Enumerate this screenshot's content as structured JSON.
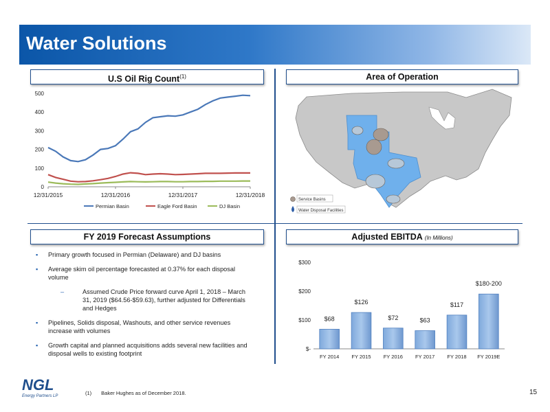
{
  "slide": {
    "title": "Water Solutions",
    "page_number": "15",
    "footnote_marker": "(1)",
    "footnote_text": "Baker Hughes as of  December  2018.",
    "logo_text": "Energy Partners LP"
  },
  "sections": {
    "rig_count": {
      "title": "U.S Oil Rig Count",
      "superscript": "(1)"
    },
    "area": {
      "title": "Area of Operation"
    },
    "forecast": {
      "title": "FY 2019 Forecast Assumptions"
    },
    "ebitda": {
      "title": "Adjusted EBITDA",
      "subtitle": "(In Millions)"
    }
  },
  "map": {
    "legend": [
      "Service Basins",
      "Water Disposal Facilities"
    ],
    "colors": {
      "land": "#c8c8c8",
      "highlight": "#6fb0ec",
      "basin": "#a89a90"
    }
  },
  "forecast_bullets": [
    {
      "text": "Primary growth focused in Permian (Delaware) and DJ basins"
    },
    {
      "text": "Average skim oil percentage forecasted at 0.37% for each disposal volume"
    },
    {
      "text": "Assumed Crude Price forward curve April 1, 2018 – March 31, 2019 ($64.56-$59.63), further adjusted for Differentials and Hedges",
      "sub": true
    },
    {
      "text": "Pipelines, Solids disposal, Washouts, and other service revenues increase with volumes"
    },
    {
      "text": "Growth capital and planned acquisitions adds several new facilities and disposal wells to existing footprint"
    }
  ],
  "chart_data": [
    {
      "type": "line",
      "x_ticks": [
        "12/31/2015",
        "12/31/2016",
        "12/31/2017",
        "12/31/2018"
      ],
      "y_ticks": [
        "0",
        "100",
        "200",
        "300",
        "400",
        "500"
      ],
      "ylim": [
        0,
        500
      ],
      "legend_position": "bottom",
      "series": [
        {
          "name": "Permian Basin",
          "color": "#4a78b8",
          "values": [
            210,
            190,
            160,
            140,
            135,
            145,
            170,
            200,
            205,
            220,
            255,
            295,
            310,
            345,
            370,
            375,
            380,
            378,
            385,
            400,
            415,
            440,
            460,
            475,
            480,
            485,
            490,
            488
          ]
        },
        {
          "name": "Eagle Ford Basin",
          "color": "#c0504d",
          "values": [
            65,
            50,
            40,
            30,
            27,
            28,
            32,
            38,
            45,
            55,
            68,
            75,
            72,
            65,
            68,
            70,
            68,
            65,
            66,
            68,
            70,
            72,
            72,
            72,
            73,
            74,
            74,
            74
          ]
        },
        {
          "name": "DJ Basin",
          "color": "#9bbb59",
          "values": [
            25,
            20,
            16,
            14,
            13,
            15,
            17,
            20,
            22,
            24,
            26,
            28,
            27,
            26,
            27,
            28,
            28,
            27,
            27,
            28,
            28,
            29,
            29,
            30,
            30,
            30,
            31,
            31
          ]
        }
      ]
    },
    {
      "type": "bar",
      "categories": [
        "FY 2014",
        "FY 2015",
        "FY 2016",
        "FY 2017",
        "FY 2018",
        "FY 2019E"
      ],
      "values": [
        68,
        126,
        72,
        63,
        117,
        190
      ],
      "data_labels": [
        "$68",
        "$126",
        "$72",
        "$63",
        "$117",
        "$180-200"
      ],
      "y_ticks": [
        "$-",
        "$100",
        "$200",
        "$300"
      ],
      "ylim": [
        0,
        300
      ],
      "bar_color": "#a9c8ec"
    }
  ]
}
